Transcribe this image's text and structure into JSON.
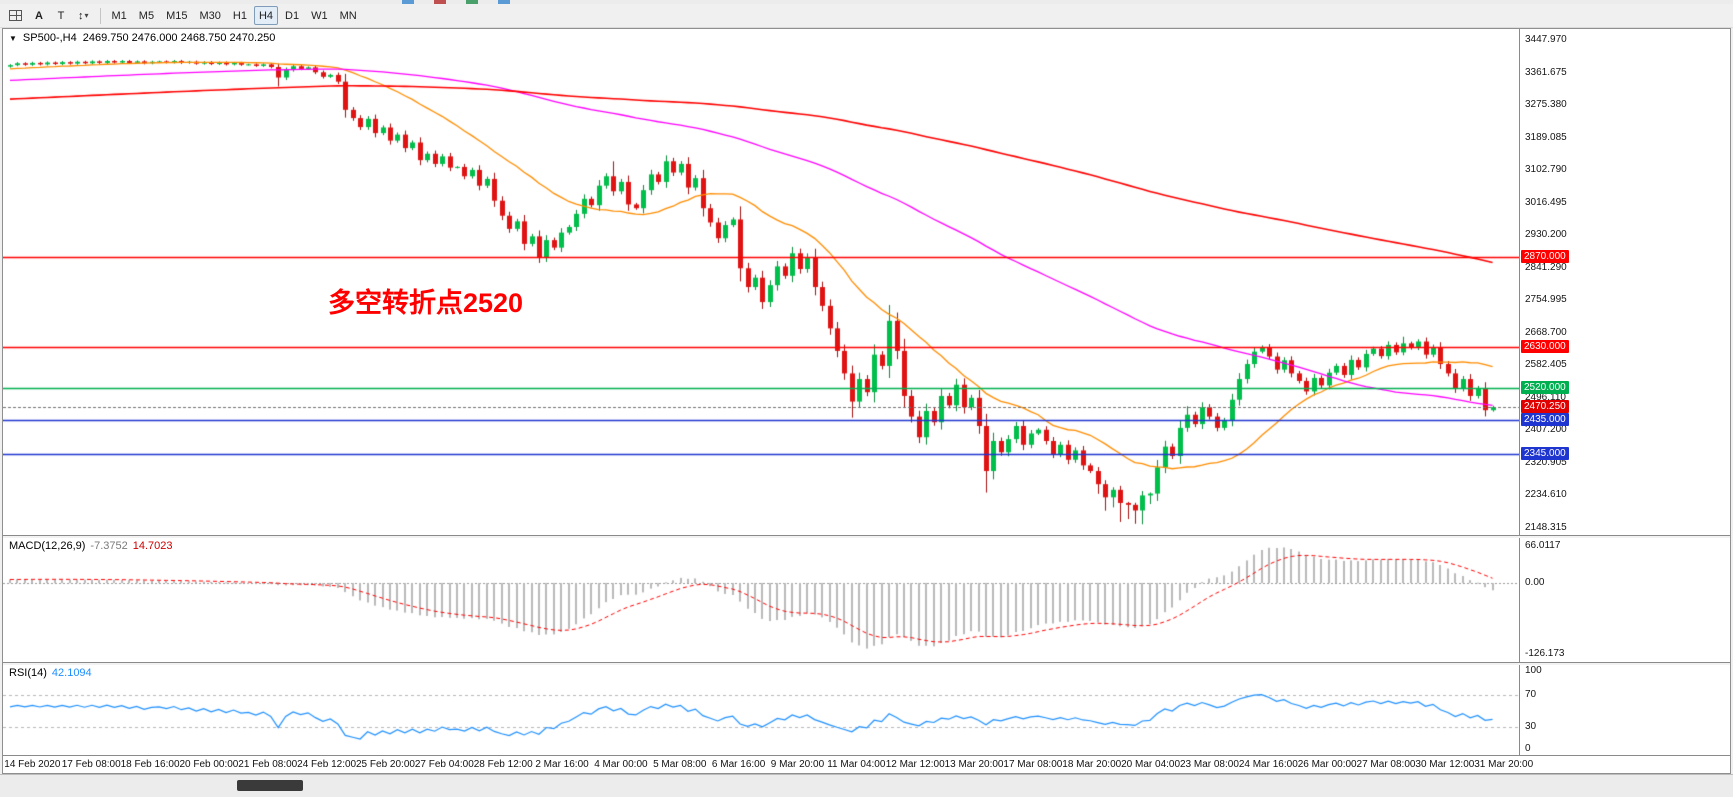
{
  "toolbar": {
    "left_icons": [
      {
        "name": "windows-grid-icon",
        "label": ""
      },
      {
        "name": "cursor-tool",
        "label": "A"
      },
      {
        "name": "text-tool",
        "label": "T"
      },
      {
        "name": "scale-tool",
        "label": "↕"
      }
    ],
    "timeframes": [
      {
        "label": "M1",
        "active": false
      },
      {
        "label": "M5",
        "active": false
      },
      {
        "label": "M15",
        "active": false
      },
      {
        "label": "M30",
        "active": false
      },
      {
        "label": "H1",
        "active": false
      },
      {
        "label": "H4",
        "active": true
      },
      {
        "label": "D1",
        "active": false
      },
      {
        "label": "W1",
        "active": false
      },
      {
        "label": "MN",
        "active": false
      }
    ]
  },
  "chart_data": {
    "type": "candlestick",
    "symbol": "SP500-",
    "timeframe": "H4",
    "title": "SP500-,H4",
    "ohlc_display": "2469.750 2476.000 2468.750 2470.250",
    "current_bar": {
      "open": 2469.75,
      "high": 2476.0,
      "low": 2468.75,
      "close": 2470.25
    },
    "y_axis": {
      "top": 3447.97,
      "bottom": 2148.315,
      "labels": [
        "3447.970",
        "3361.675",
        "3275.380",
        "3189.085",
        "3102.790",
        "3016.495",
        "2930.200",
        "2841.290",
        "2754.995",
        "2668.700",
        "2582.405",
        "2496.110",
        "2407.200",
        "2320.905",
        "2234.610",
        "2148.315"
      ]
    },
    "x_labels": [
      "14 Feb 2020",
      "17 Feb 08:00",
      "18 Feb 16:00",
      "20 Feb 00:00",
      "21 Feb 08:00",
      "24 Feb 12:00",
      "25 Feb 20:00",
      "27 Feb 04:00",
      "28 Feb 12:00",
      "2 Mar 16:00",
      "4 Mar 00:00",
      "5 Mar 08:00",
      "6 Mar 16:00",
      "9 Mar 20:00",
      "11 Mar 04:00",
      "12 Mar 12:00",
      "13 Mar 20:00",
      "17 Mar 08:00",
      "18 Mar 20:00",
      "20 Mar 04:00",
      "23 Mar 08:00",
      "24 Mar 16:00",
      "26 Mar 00:00",
      "27 Mar 08:00",
      "30 Mar 12:00",
      "31 Mar 20:00"
    ],
    "closes": [
      3381,
      3386,
      3382,
      3387,
      3383,
      3388,
      3384,
      3389,
      3385,
      3390,
      3386,
      3391,
      3387,
      3392,
      3388,
      3392,
      3387,
      3391,
      3386,
      3390,
      3391,
      3388,
      3392,
      3387,
      3390,
      3385,
      3389,
      3384,
      3388,
      3383,
      3387,
      3382,
      3383,
      3379,
      3383,
      3376,
      3348,
      3368,
      3378,
      3371,
      3375,
      3362,
      3350,
      3355,
      3337,
      3262,
      3240,
      3216,
      3238,
      3200,
      3215,
      3180,
      3196,
      3160,
      3175,
      3128,
      3145,
      3118,
      3138,
      3108,
      3110,
      3085,
      3102,
      3060,
      3078,
      3020,
      2980,
      2945,
      2965,
      2905,
      2925,
      2870,
      2915,
      2895,
      2935,
      2950,
      2985,
      3025,
      3008,
      3060,
      3085,
      3045,
      3070,
      3010,
      3000,
      3048,
      3090,
      3070,
      3125,
      3095,
      3118,
      3055,
      3080,
      3000,
      2962,
      2920,
      2955,
      2970,
      2840,
      2790,
      2815,
      2750,
      2795,
      2845,
      2820,
      2880,
      2838,
      2870,
      2790,
      2740,
      2680,
      2620,
      2560,
      2485,
      2545,
      2510,
      2610,
      2580,
      2700,
      2620,
      2500,
      2445,
      2390,
      2460,
      2430,
      2500,
      2475,
      2530,
      2470,
      2495,
      2420,
      2300,
      2380,
      2350,
      2385,
      2420,
      2370,
      2400,
      2410,
      2380,
      2345,
      2370,
      2330,
      2355,
      2315,
      2300,
      2265,
      2230,
      2250,
      2215,
      2210,
      2195,
      2235,
      2240,
      2310,
      2365,
      2340,
      2415,
      2450,
      2425,
      2470,
      2445,
      2415,
      2435,
      2490,
      2545,
      2585,
      2618,
      2630,
      2605,
      2570,
      2595,
      2560,
      2540,
      2512,
      2548,
      2528,
      2562,
      2580,
      2556,
      2596,
      2576,
      2612,
      2626,
      2606,
      2636,
      2616,
      2640,
      2628,
      2645,
      2610,
      2630,
      2585,
      2560,
      2520,
      2545,
      2500,
      2520,
      2462,
      2470.25
    ],
    "extra_wicks": {
      "low": {
        "36": 15,
        "113": 22,
        "131": 25,
        "146": 15,
        "147": 25,
        "148": 20,
        "149": 40,
        "150": 35,
        "151": 30,
        "152": 25,
        "153": 20
      },
      "high": {
        "81": 28,
        "118": 10,
        "158": 12,
        "187": 10
      }
    },
    "prehistory": {
      "bars": 200,
      "from": 3200,
      "to": 3379
    },
    "moving_averages": [
      {
        "period": 21,
        "color": "#ff8c00"
      },
      {
        "period": 89,
        "color": "#ff00ff"
      },
      {
        "period": 200,
        "color": "#ff0000"
      }
    ],
    "horizontal_lines": [
      {
        "price": 2870,
        "label": "2870.000",
        "color": "#ff0000"
      },
      {
        "price": 2630,
        "label": "2630.000",
        "color": "#ff0000"
      },
      {
        "price": 2520,
        "label": "2520.000",
        "color": "#00b050"
      },
      {
        "price": 2435,
        "label": "2435.000",
        "color": "#1f35cf"
      },
      {
        "price": 2345,
        "label": "2345.000",
        "color": "#1f35cf"
      }
    ],
    "current_price": {
      "value": 2470.25,
      "label": "2470.250",
      "color": "#e00000"
    },
    "candle_colors": {
      "up": "#00bf4a",
      "down": "#e01313",
      "wick_up": "#0a8a3a",
      "wick_down": "#a80f0f"
    },
    "annotation": {
      "text": "多空转折点2520",
      "color": "#ff0000"
    },
    "macd": {
      "label": "MACD(12,26,9)",
      "main_value": "-7.3752",
      "signal_value": "14.7023",
      "fast": 12,
      "slow": 26,
      "signal": 9,
      "scale": {
        "top": 66.0117,
        "top_label": "66.0117",
        "zero_label": "0.00",
        "bottom": -126.173,
        "bottom_label": "-126.173"
      },
      "hist_color": "#b9b9b9",
      "signal_color": "#ff0000"
    },
    "rsi": {
      "label": "RSI(14)",
      "value": "42.1094",
      "period": 14,
      "color": "#1e90ff",
      "levels": [
        {
          "value": 100,
          "label": "100",
          "dashed": false
        },
        {
          "value": 70,
          "label": "70",
          "dashed": true
        },
        {
          "value": 30,
          "label": "30",
          "dashed": true
        },
        {
          "value": 0,
          "label": "0",
          "dashed": false
        }
      ]
    }
  }
}
